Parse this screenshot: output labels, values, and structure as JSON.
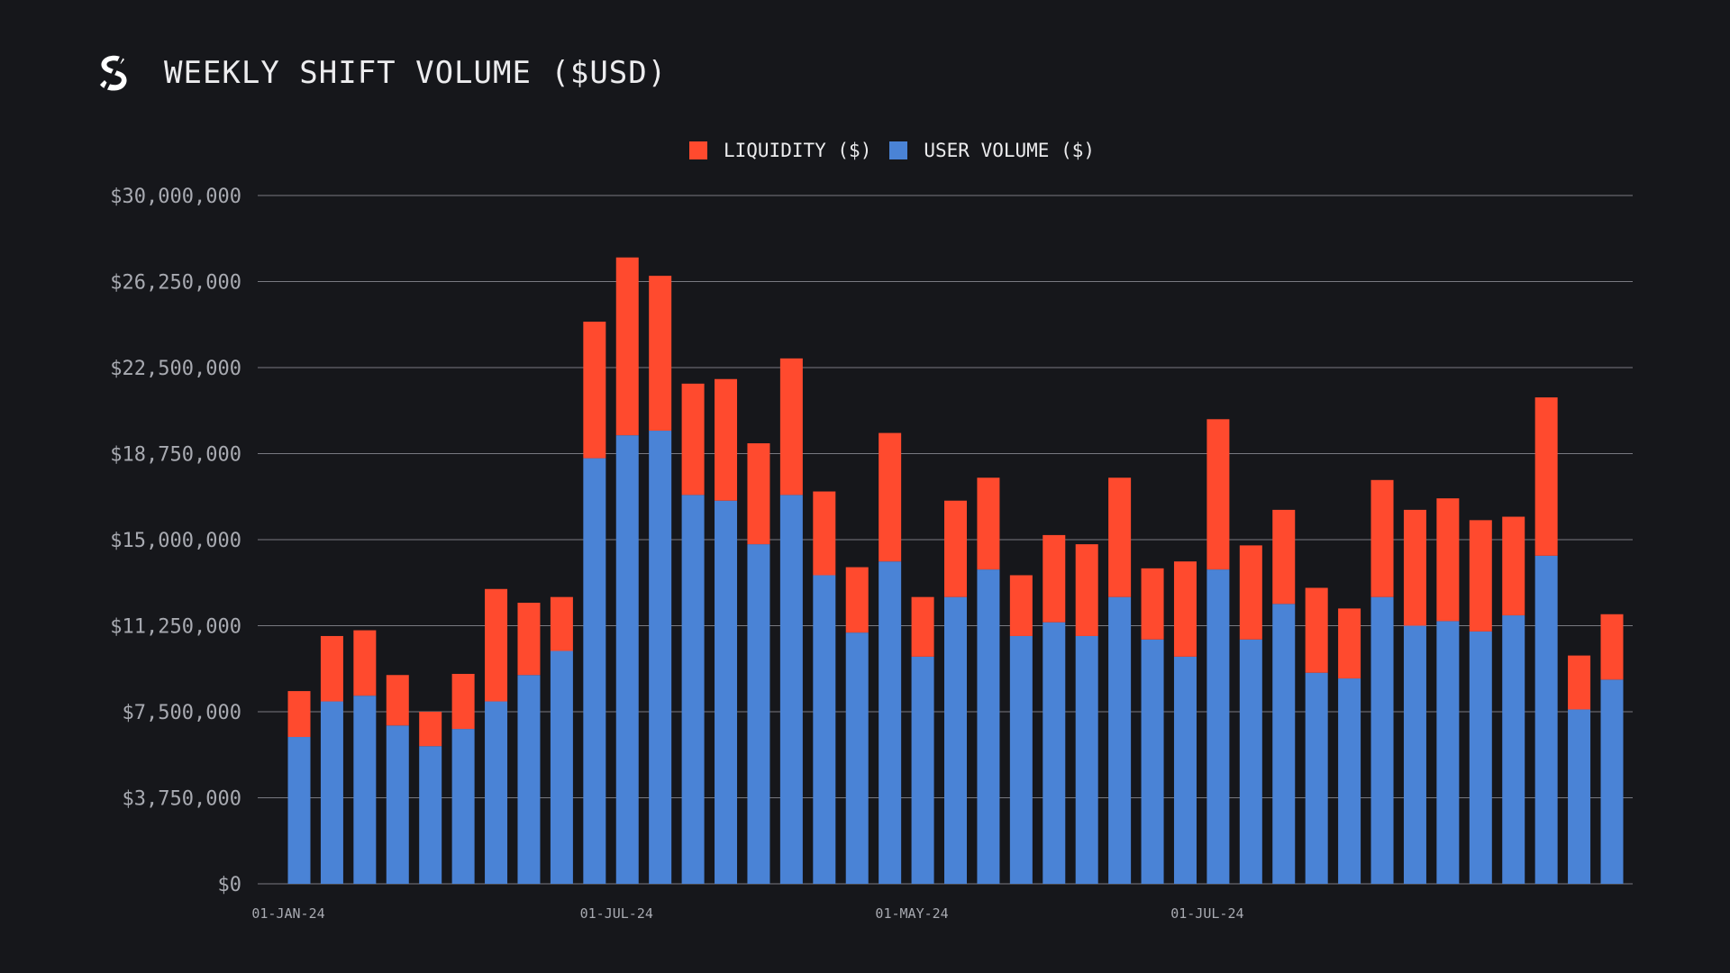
{
  "header": {
    "title": "WEEKLY SHIFT VOLUME ($USD)",
    "logo_icon": "sideshift-s-logo-icon"
  },
  "colors": {
    "background": "#16171b",
    "liquidity": "#ff4a2e",
    "user_volume": "#4a83d6",
    "grid": "#9a9ca3",
    "axis_text": "#a8aab1"
  },
  "chart_data": {
    "type": "bar",
    "stacked": true,
    "title": "WEEKLY SHIFT VOLUME ($USD)",
    "xlabel": "",
    "ylabel": "",
    "ylim": [
      0,
      30000000
    ],
    "yticks": [
      0,
      3750000,
      7500000,
      11250000,
      15000000,
      18750000,
      22500000,
      26250000,
      30000000
    ],
    "ytick_labels": [
      "$0",
      "$3,750,000",
      "$7,500,000",
      "$11,250,000",
      "$15,000,000",
      "$18,750,000",
      "$22,500,000",
      "$26,250,000",
      "$30,000,000"
    ],
    "xtick_labels": [
      {
        "index": 0,
        "label": "01-JAN-24"
      },
      {
        "index": 10,
        "label": "01-JUL-24"
      },
      {
        "index": 19,
        "label": "01-MAY-24"
      },
      {
        "index": 28,
        "label": "01-JUL-24"
      }
    ],
    "grid": true,
    "legend_position": "top-center",
    "series": [
      {
        "name": "LIQUIDITY ($)",
        "values": [
          2000000,
          2850000,
          2850000,
          2200000,
          1500000,
          2400000,
          4900000,
          3150000,
          2350000,
          5950000,
          7750000,
          6750000,
          4850000,
          5300000,
          4400000,
          5950000,
          3650000,
          2850000,
          5600000,
          2600000,
          4200000,
          4000000,
          2650000,
          3800000,
          4000000,
          5200000,
          3100000,
          4150000,
          6550000,
          4100000,
          4100000,
          3700000,
          3050000,
          5100000,
          5050000,
          5350000,
          4850000,
          4300000,
          6900000,
          2350000,
          2850000
        ],
        "color": "#ff4a2e"
      },
      {
        "name": "USER VOLUME ($)",
        "values": [
          6400000,
          7950000,
          8200000,
          6900000,
          6000000,
          6750000,
          7950000,
          9100000,
          10150000,
          18550000,
          19550000,
          19750000,
          16950000,
          16700000,
          14800000,
          16950000,
          13450000,
          10950000,
          14050000,
          9900000,
          12500000,
          13700000,
          10800000,
          11400000,
          10800000,
          12500000,
          10650000,
          9900000,
          13700000,
          10650000,
          12200000,
          9200000,
          8950000,
          12500000,
          11250000,
          11450000,
          11000000,
          11700000,
          14300000,
          7600000,
          8900000
        ],
        "color": "#4a83d6"
      }
    ]
  }
}
